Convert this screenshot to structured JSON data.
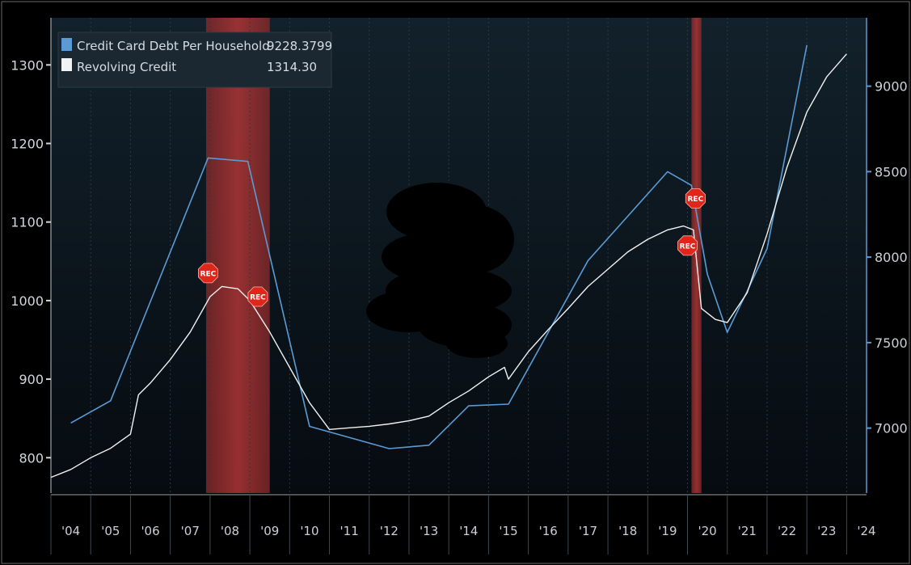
{
  "chart_data": {
    "type": "line",
    "legend_placement": "top-left",
    "grid": true,
    "x_tick_labels": [
      "'04",
      "'05",
      "'06",
      "'07",
      "'08",
      "'09",
      "'10",
      "'11",
      "'12",
      "'13",
      "'14",
      "'15",
      "'16",
      "'17",
      "'18",
      "'19",
      "'20",
      "'21",
      "'22",
      "'23",
      "'24"
    ],
    "xlim": [
      2004,
      2024.5
    ],
    "y_left": {
      "ylim": [
        755,
        1360
      ],
      "ticks": [
        800,
        900,
        1000,
        1100,
        1200,
        1300
      ]
    },
    "y_right": {
      "ylim": [
        6620,
        9400
      ],
      "ticks": [
        7000,
        7500,
        8000,
        8500,
        9000
      ]
    },
    "recession_bands": [
      [
        2007.9,
        2009.5
      ],
      [
        2020.1,
        2020.35
      ]
    ],
    "recession_marker_label": "REC",
    "recession_markers": [
      {
        "x": 2007.95,
        "y_left": 1035
      },
      {
        "x": 2009.2,
        "y_left": 1005
      },
      {
        "x": 2020.2,
        "y_left": 1130
      },
      {
        "x": 2020.0,
        "y_left": 1070
      }
    ],
    "series": [
      {
        "name": "Credit Card Debt Per Household",
        "last_value": "9228.3799",
        "axis": "right",
        "color": "#5b9bd5",
        "points": [
          [
            2004.5,
            7030
          ],
          [
            2005.5,
            7160
          ],
          [
            2007.95,
            8580
          ],
          [
            2008.95,
            8560
          ],
          [
            2010.5,
            7010
          ],
          [
            2012.5,
            6880
          ],
          [
            2013.5,
            6900
          ],
          [
            2014.5,
            7130
          ],
          [
            2015.5,
            7140
          ],
          [
            2017.5,
            7980
          ],
          [
            2019.5,
            8500
          ],
          [
            2020.1,
            8420
          ],
          [
            2020.5,
            7900
          ],
          [
            2021.0,
            7560
          ],
          [
            2021.5,
            7800
          ],
          [
            2022.0,
            8050
          ],
          [
            2023.0,
            9240
          ]
        ]
      },
      {
        "name": "Revolving Credit",
        "last_value": "1314.30",
        "axis": "left",
        "color": "#f2f2f2",
        "points": [
          [
            2004.0,
            775
          ],
          [
            2004.5,
            785
          ],
          [
            2005.0,
            800
          ],
          [
            2005.5,
            812
          ],
          [
            2006.0,
            830
          ],
          [
            2006.2,
            880
          ],
          [
            2006.5,
            895
          ],
          [
            2007.0,
            925
          ],
          [
            2007.5,
            960
          ],
          [
            2008.0,
            1005
          ],
          [
            2008.3,
            1018
          ],
          [
            2008.7,
            1015
          ],
          [
            2009.0,
            1000
          ],
          [
            2009.5,
            960
          ],
          [
            2010.0,
            915
          ],
          [
            2010.5,
            870
          ],
          [
            2011.0,
            836
          ],
          [
            2011.5,
            838
          ],
          [
            2012.0,
            840
          ],
          [
            2012.5,
            843
          ],
          [
            2013.0,
            847
          ],
          [
            2013.5,
            853
          ],
          [
            2014.0,
            870
          ],
          [
            2014.5,
            885
          ],
          [
            2015.0,
            903
          ],
          [
            2015.4,
            915
          ],
          [
            2015.5,
            900
          ],
          [
            2016.0,
            935
          ],
          [
            2016.5,
            963
          ],
          [
            2017.0,
            990
          ],
          [
            2017.5,
            1018
          ],
          [
            2018.0,
            1040
          ],
          [
            2018.5,
            1062
          ],
          [
            2019.0,
            1078
          ],
          [
            2019.5,
            1090
          ],
          [
            2019.9,
            1095
          ],
          [
            2020.15,
            1090
          ],
          [
            2020.35,
            990
          ],
          [
            2020.7,
            976
          ],
          [
            2021.0,
            972
          ],
          [
            2021.5,
            1010
          ],
          [
            2022.0,
            1085
          ],
          [
            2022.5,
            1170
          ],
          [
            2023.0,
            1240
          ],
          [
            2023.5,
            1285
          ],
          [
            2024.0,
            1314
          ]
        ]
      }
    ]
  }
}
